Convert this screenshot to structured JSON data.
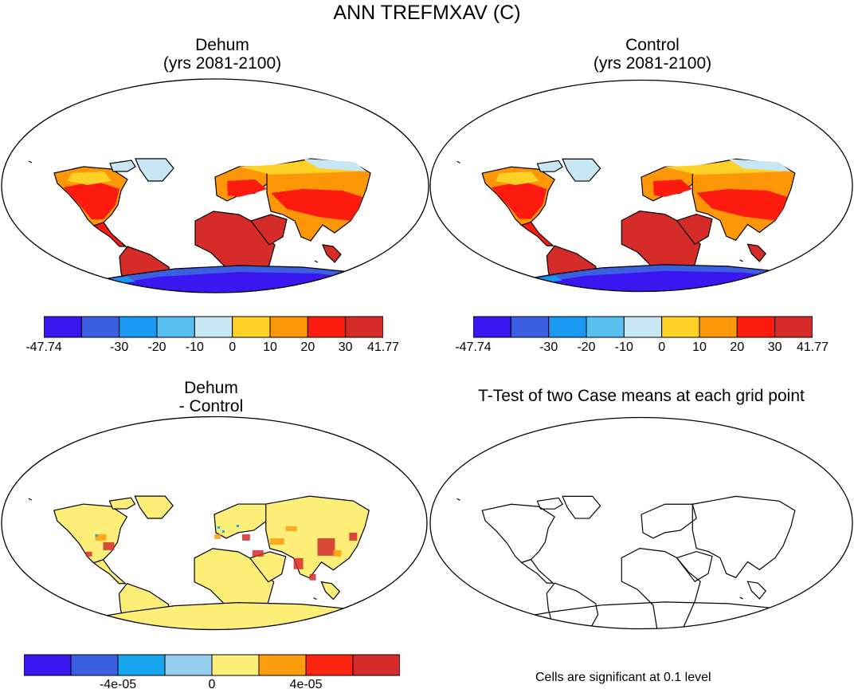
{
  "title": "ANN TREFMXAV (C)",
  "panels": [
    {
      "id": "dehum",
      "title_line1": "Dehum",
      "title_line2": "(yrs 2081-2100)"
    },
    {
      "id": "control",
      "title_line1": "Control",
      "title_line2": "(yrs 2081-2100)"
    },
    {
      "id": "diff",
      "title_line1": "Dehum",
      "title_line2": "- Control"
    },
    {
      "id": "ttest",
      "title_line1": "T-Test of two Case means at each grid point",
      "title_line2": ""
    }
  ],
  "colorbars": {
    "absolute": {
      "colors": [
        "#3a16f0",
        "#3c5ee0",
        "#1898f0",
        "#58c0f0",
        "#c8e6f4",
        "#fdd126",
        "#fe9708",
        "#fd1b10",
        "#d52c2a"
      ],
      "labels": [
        "-47.74",
        "-30",
        "-20",
        "-10",
        "0",
        "10",
        "20",
        "30",
        "41.77"
      ]
    },
    "difference": {
      "colors": [
        "#3a16f0",
        "#3c5ee0",
        "#16a6f0",
        "#96cef0",
        "#fdee78",
        "#fe9e0c",
        "#fd2410",
        "#d42c2c"
      ],
      "labels": [
        "-4e-05",
        "0",
        "4e-05"
      ]
    }
  },
  "note": "Cells are significant at 0.1 level",
  "map_colors": {
    "ocean": "#ffffff",
    "tropics": "#d52c2a",
    "midlat": "#fd1b10",
    "temperate": "#fe9708",
    "cool": "#fdd126",
    "polar": "#c8e6f4",
    "antarctica": "#3c5ee0",
    "diff_land": "#fdee78",
    "diff_hot": "#d42c2c",
    "diff_warm": "#fe9e0c"
  }
}
